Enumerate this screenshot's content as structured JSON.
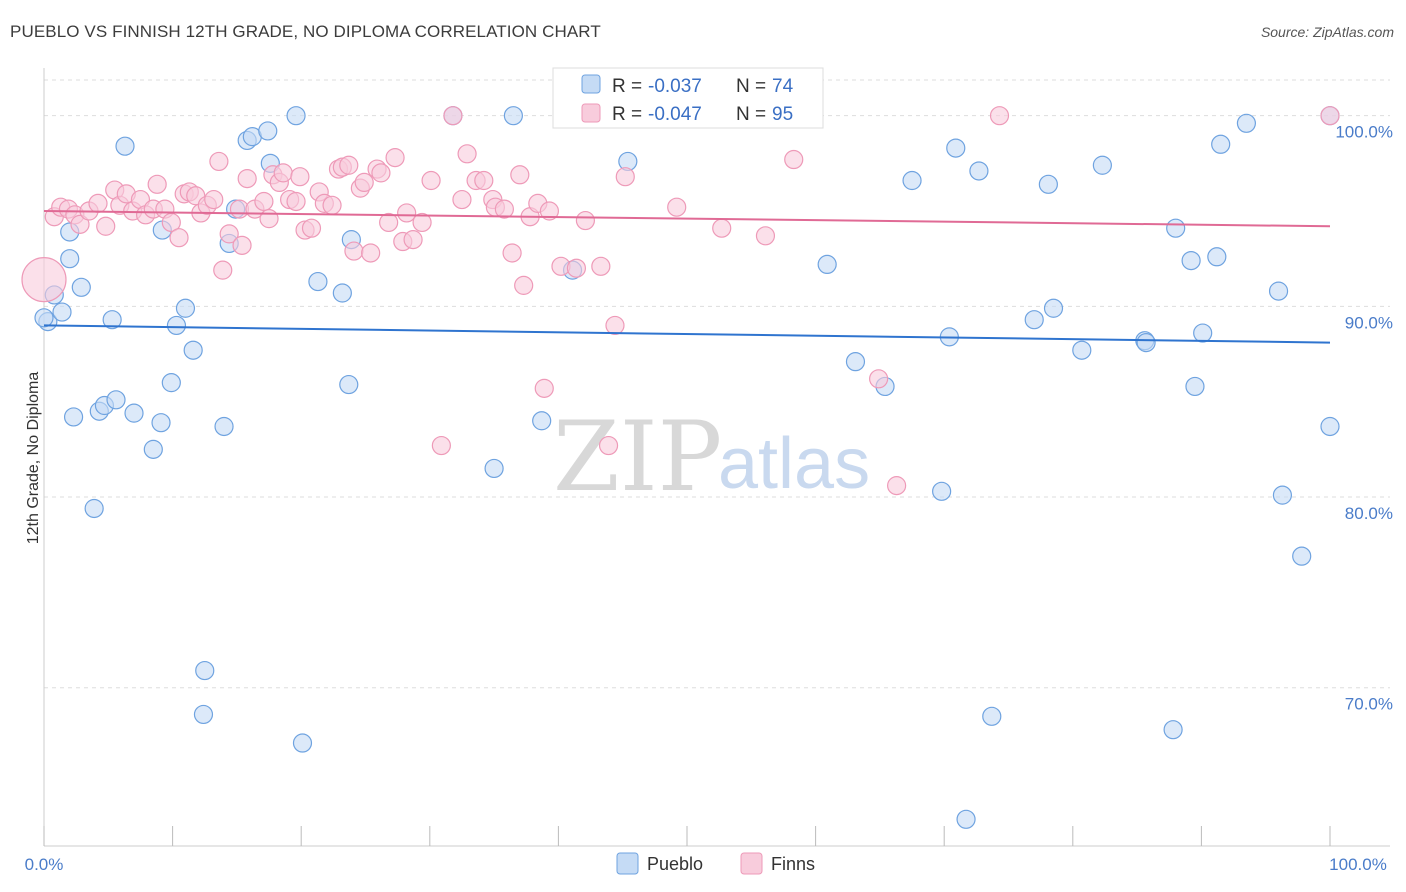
{
  "title": "PUEBLO VS FINNISH 12TH GRADE, NO DIPLOMA CORRELATION CHART",
  "source": "Source: ZipAtlas.com",
  "watermark": {
    "zip": "ZIP",
    "atlas": "atlas"
  },
  "colors": {
    "pueblo": "#6fa3e0",
    "pueblo_fill": "#c5dbf5",
    "pueblo_line": "#2f74cf",
    "finns": "#ee9ab8",
    "finns_fill": "#f8ccdc",
    "finns_line": "#e06a95",
    "tick": "#4a7cc9",
    "grid": "#dddddd"
  },
  "legend_top": [
    {
      "r_label": "R =",
      "r_value": "-0.037",
      "n_label": "N =",
      "n_value": "74"
    },
    {
      "r_label": "R =",
      "r_value": "-0.047",
      "n_label": "N =",
      "n_value": "95"
    }
  ],
  "legend_bottom": [
    "Pueblo",
    "Finns"
  ],
  "chart_data": {
    "type": "scatter",
    "title": "PUEBLO VS FINNISH 12TH GRADE, NO DIPLOMA CORRELATION CHART",
    "xlabel": "",
    "ylabel": "12th Grade, No Diploma",
    "xlim": [
      0,
      100
    ],
    "ylim": [
      61.7,
      102.5
    ],
    "x_ticks": [
      "0.0%",
      "100.0%"
    ],
    "y_ticks": [
      {
        "value": 100,
        "label": "100.0%"
      },
      {
        "value": 90,
        "label": "90.0%"
      },
      {
        "value": 80,
        "label": "80.0%"
      },
      {
        "value": 70,
        "label": "70.0%"
      }
    ],
    "grid": true,
    "series": [
      {
        "name": "Pueblo",
        "trend": [
          [
            0,
            89.0
          ],
          [
            100,
            88.1
          ]
        ],
        "points": [
          [
            0.3,
            89.2
          ],
          [
            0.8,
            90.6
          ],
          [
            1.4,
            89.7
          ],
          [
            2.0,
            93.9
          ],
          [
            2.0,
            92.5
          ],
          [
            2.9,
            91.0
          ],
          [
            2.3,
            84.2
          ],
          [
            3.9,
            79.4
          ],
          [
            4.3,
            84.5
          ],
          [
            4.7,
            84.8
          ],
          [
            5.6,
            85.1
          ],
          [
            6.3,
            98.4
          ],
          [
            7.0,
            84.4
          ],
          [
            5.3,
            89.3
          ],
          [
            8.5,
            82.5
          ],
          [
            9.1,
            83.9
          ],
          [
            9.2,
            94.0
          ],
          [
            9.9,
            86.0
          ],
          [
            10.3,
            89.0
          ],
          [
            11.0,
            89.9
          ],
          [
            11.6,
            87.7
          ],
          [
            12.4,
            68.6
          ],
          [
            12.5,
            70.9
          ],
          [
            14.0,
            83.7
          ],
          [
            14.4,
            93.3
          ],
          [
            14.9,
            95.1
          ],
          [
            15.8,
            98.7
          ],
          [
            16.2,
            98.9
          ],
          [
            17.4,
            99.2
          ],
          [
            17.6,
            97.5
          ],
          [
            19.6,
            100.0
          ],
          [
            20.1,
            67.1
          ],
          [
            21.3,
            91.3
          ],
          [
            23.2,
            90.7
          ],
          [
            23.9,
            93.5
          ],
          [
            23.7,
            85.9
          ],
          [
            31.8,
            100.0
          ],
          [
            35.0,
            81.5
          ],
          [
            36.5,
            100.0
          ],
          [
            38.7,
            84.0
          ],
          [
            41.1,
            91.9
          ],
          [
            45.4,
            97.6
          ],
          [
            47.6,
            100.0
          ],
          [
            60.9,
            92.2
          ],
          [
            63.1,
            87.1
          ],
          [
            65.4,
            85.8
          ],
          [
            67.5,
            96.6
          ],
          [
            69.8,
            80.3
          ],
          [
            70.4,
            88.4
          ],
          [
            70.9,
            98.3
          ],
          [
            71.7,
            63.1
          ],
          [
            72.7,
            97.1
          ],
          [
            73.7,
            68.5
          ],
          [
            77.0,
            89.3
          ],
          [
            78.1,
            96.4
          ],
          [
            78.5,
            89.9
          ],
          [
            80.7,
            87.7
          ],
          [
            82.3,
            97.4
          ],
          [
            85.6,
            88.2
          ],
          [
            85.7,
            88.1
          ],
          [
            87.8,
            67.8
          ],
          [
            88.0,
            94.1
          ],
          [
            89.2,
            92.4
          ],
          [
            89.5,
            85.8
          ],
          [
            90.1,
            88.6
          ],
          [
            91.2,
            92.6
          ],
          [
            91.5,
            98.5
          ],
          [
            93.5,
            99.6
          ],
          [
            96.0,
            90.8
          ],
          [
            96.3,
            80.1
          ],
          [
            97.8,
            76.9
          ],
          [
            100.0,
            83.7
          ],
          [
            100.0,
            100.0
          ],
          [
            0.0,
            89.4
          ]
        ]
      },
      {
        "name": "Finns",
        "trend": [
          [
            0,
            95.0
          ],
          [
            100,
            94.2
          ]
        ],
        "points": [
          [
            0.0,
            91.4
          ],
          [
            0.8,
            94.7
          ],
          [
            1.3,
            95.2
          ],
          [
            1.9,
            95.1
          ],
          [
            2.4,
            94.8
          ],
          [
            2.8,
            94.3
          ],
          [
            3.5,
            95.0
          ],
          [
            4.2,
            95.4
          ],
          [
            4.8,
            94.2
          ],
          [
            5.5,
            96.1
          ],
          [
            5.9,
            95.3
          ],
          [
            6.4,
            95.9
          ],
          [
            6.9,
            95.0
          ],
          [
            7.5,
            95.6
          ],
          [
            7.9,
            94.8
          ],
          [
            8.5,
            95.1
          ],
          [
            8.8,
            96.4
          ],
          [
            9.4,
            95.1
          ],
          [
            9.9,
            94.4
          ],
          [
            10.5,
            93.6
          ],
          [
            10.9,
            95.9
          ],
          [
            11.3,
            96.0
          ],
          [
            11.8,
            95.8
          ],
          [
            12.2,
            94.9
          ],
          [
            12.7,
            95.3
          ],
          [
            13.2,
            95.6
          ],
          [
            13.6,
            97.6
          ],
          [
            13.9,
            91.9
          ],
          [
            14.4,
            93.8
          ],
          [
            15.2,
            95.1
          ],
          [
            15.4,
            93.2
          ],
          [
            15.8,
            96.7
          ],
          [
            16.4,
            95.1
          ],
          [
            17.1,
            95.5
          ],
          [
            17.5,
            94.6
          ],
          [
            17.8,
            96.9
          ],
          [
            18.3,
            96.5
          ],
          [
            18.6,
            97.0
          ],
          [
            19.1,
            95.6
          ],
          [
            19.6,
            95.5
          ],
          [
            19.9,
            96.8
          ],
          [
            20.3,
            94.0
          ],
          [
            20.8,
            94.1
          ],
          [
            21.4,
            96.0
          ],
          [
            21.8,
            95.4
          ],
          [
            22.4,
            95.3
          ],
          [
            22.9,
            97.2
          ],
          [
            23.2,
            97.3
          ],
          [
            23.7,
            97.4
          ],
          [
            24.1,
            92.9
          ],
          [
            24.6,
            96.2
          ],
          [
            24.9,
            96.5
          ],
          [
            25.4,
            92.8
          ],
          [
            25.9,
            97.2
          ],
          [
            26.2,
            97.0
          ],
          [
            26.8,
            94.4
          ],
          [
            27.3,
            97.8
          ],
          [
            27.9,
            93.4
          ],
          [
            28.2,
            94.9
          ],
          [
            28.7,
            93.5
          ],
          [
            29.4,
            94.4
          ],
          [
            30.1,
            96.6
          ],
          [
            30.9,
            82.7
          ],
          [
            31.8,
            100.0
          ],
          [
            32.5,
            95.6
          ],
          [
            32.9,
            98.0
          ],
          [
            33.6,
            96.6
          ],
          [
            34.2,
            96.6
          ],
          [
            34.9,
            95.6
          ],
          [
            35.1,
            95.2
          ],
          [
            35.8,
            95.1
          ],
          [
            36.4,
            92.8
          ],
          [
            37.0,
            96.9
          ],
          [
            37.3,
            91.1
          ],
          [
            37.8,
            94.7
          ],
          [
            38.4,
            95.4
          ],
          [
            38.9,
            85.7
          ],
          [
            39.3,
            95.0
          ],
          [
            40.2,
            92.1
          ],
          [
            41.4,
            92.0
          ],
          [
            42.1,
            94.5
          ],
          [
            43.3,
            92.1
          ],
          [
            43.9,
            82.7
          ],
          [
            44.4,
            89.0
          ],
          [
            45.2,
            96.8
          ],
          [
            49.2,
            95.2
          ],
          [
            52.7,
            94.1
          ],
          [
            54.8,
            100.0
          ],
          [
            56.1,
            93.7
          ],
          [
            56.9,
            100.0
          ],
          [
            58.3,
            97.7
          ],
          [
            64.9,
            86.2
          ],
          [
            66.3,
            80.6
          ],
          [
            74.3,
            100.0
          ],
          [
            100.0,
            100.0
          ]
        ]
      }
    ]
  }
}
